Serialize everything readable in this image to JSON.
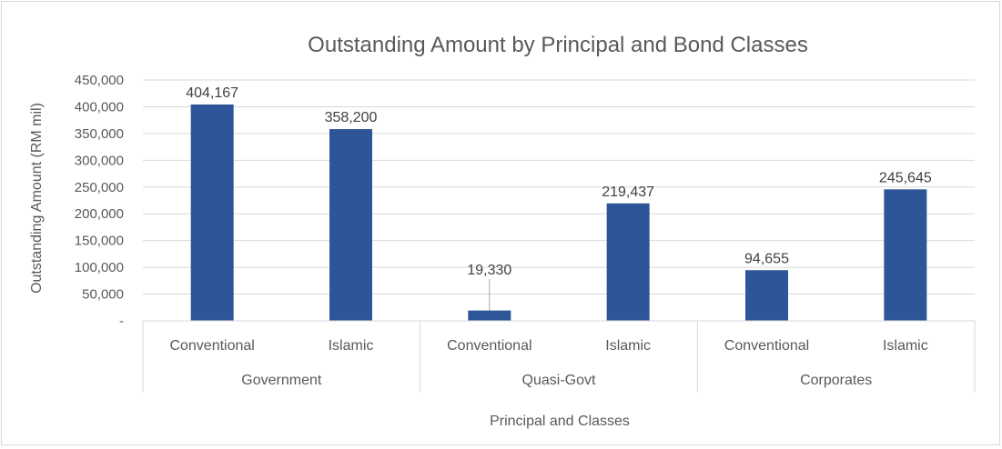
{
  "chart_data": {
    "type": "bar",
    "title": "Outstanding Amount by Principal and Bond Classes",
    "xlabel": "Principal and Classes",
    "ylabel": "Outstanding Amount (RM mil)",
    "ylim": [
      0,
      450000
    ],
    "yticks": [
      0,
      50000,
      100000,
      150000,
      200000,
      250000,
      300000,
      350000,
      400000,
      450000
    ],
    "ytick_labels": [
      "-",
      "50,000",
      "100,000",
      "150,000",
      "200,000",
      "250,000",
      "300,000",
      "350,000",
      "400,000",
      "450,000"
    ],
    "grid": true,
    "groups": [
      {
        "name": "Government",
        "categories": [
          "Conventional",
          "Islamic"
        ]
      },
      {
        "name": "Quasi-Govt",
        "categories": [
          "Conventional",
          "Islamic"
        ]
      },
      {
        "name": "Corporates",
        "categories": [
          "Conventional",
          "Islamic"
        ]
      }
    ],
    "values": [
      404167,
      358200,
      19330,
      219437,
      94655,
      245645
    ],
    "data_labels": [
      "404,167",
      "358,200",
      "19,330",
      "219,437",
      "94,655",
      "245,645"
    ],
    "bar_color": "#2e5597"
  }
}
